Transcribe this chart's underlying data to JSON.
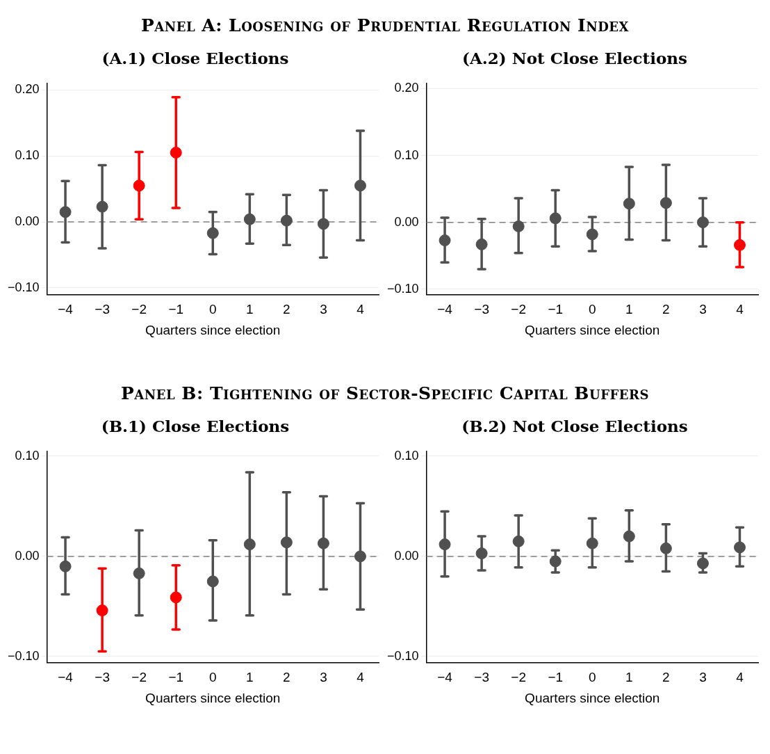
{
  "chart_data": [
    {
      "type": "scatter",
      "title": "(A.1) Close Elections",
      "xlabel": "Quarters since election",
      "annotations": [
        "Panel A: Loosening of Prudential Regulation Index"
      ],
      "marker": "circle",
      "grid": "y",
      "legend": false,
      "x": [
        -4,
        -3,
        -2,
        -1,
        0,
        1,
        2,
        3,
        4
      ],
      "xlim": [
        -4.5,
        4.5
      ],
      "xticks": [
        {
          "value": -4,
          "label": "−4"
        },
        {
          "value": -3,
          "label": "−3"
        },
        {
          "value": -2,
          "label": "−2"
        },
        {
          "value": -1,
          "label": "−1"
        },
        0,
        1,
        2,
        3,
        4
      ],
      "ylim": [
        -0.11,
        0.21
      ],
      "yticks": [
        {
          "value": -0.1,
          "label": "−0.10"
        },
        {
          "value": 0,
          "label": "0.00"
        },
        {
          "value": 0.1,
          "label": "0.10"
        },
        {
          "value": 0.2,
          "label": "0.20"
        }
      ],
      "ref_lines": [
        {
          "axis": "y",
          "value": 0,
          "color": "#808080",
          "line_style": "dashed"
        }
      ],
      "series": [
        {
          "values": [
            0.015,
            0.023,
            0.055,
            0.105,
            -0.017,
            0.004,
            0.002,
            -0.003,
            0.055
          ],
          "colors": [
            "#505050",
            "#505050",
            "#ff0000",
            "#ff0000",
            "#505050",
            "#505050",
            "#505050",
            "#505050",
            "#505050"
          ],
          "errors": [
            [
              -0.031,
              0.062
            ],
            [
              -0.04,
              0.086
            ],
            [
              0.004,
              0.106
            ],
            [
              0.021,
              0.189
            ],
            [
              -0.049,
              0.015
            ],
            [
              -0.033,
              0.042
            ],
            [
              -0.035,
              0.041
            ],
            [
              -0.054,
              0.048
            ],
            [
              -0.028,
              0.138
            ]
          ]
        }
      ]
    },
    {
      "type": "scatter",
      "title": "(A.2) Not Close Elections",
      "xlabel": "Quarters since election",
      "marker": "circle",
      "grid": "y",
      "legend": false,
      "x": [
        -4,
        -3,
        -2,
        -1,
        0,
        1,
        2,
        3,
        4
      ],
      "xlim": [
        -4.5,
        4.5
      ],
      "xticks": [
        {
          "value": -4,
          "label": "−4"
        },
        {
          "value": -3,
          "label": "−3"
        },
        {
          "value": -2,
          "label": "−2"
        },
        {
          "value": -1,
          "label": "−1"
        },
        0,
        1,
        2,
        3,
        4
      ],
      "ylim": [
        -0.108,
        0.208
      ],
      "yticks": [
        {
          "value": -0.1,
          "label": "−0.10"
        },
        {
          "value": 0,
          "label": "0.00"
        },
        {
          "value": 0.1,
          "label": "0.10"
        },
        {
          "value": 0.2,
          "label": "0.20"
        }
      ],
      "ref_lines": [
        {
          "axis": "y",
          "value": 0,
          "color": "#808080",
          "line_style": "dashed"
        }
      ],
      "series": [
        {
          "values": [
            -0.027,
            -0.033,
            -0.006,
            0.006,
            -0.018,
            0.028,
            0.029,
            0.0,
            -0.034
          ],
          "colors": [
            "#505050",
            "#505050",
            "#505050",
            "#505050",
            "#505050",
            "#505050",
            "#505050",
            "#505050",
            "#ff0000"
          ],
          "errors": [
            [
              -0.06,
              0.007
            ],
            [
              -0.07,
              0.005
            ],
            [
              -0.046,
              0.036
            ],
            [
              -0.036,
              0.048
            ],
            [
              -0.043,
              0.008
            ],
            [
              -0.026,
              0.083
            ],
            [
              -0.027,
              0.086
            ],
            [
              -0.036,
              0.036
            ],
            [
              -0.067,
              0.0
            ]
          ]
        }
      ]
    },
    {
      "type": "scatter",
      "title": "(B.1) Close Elections",
      "xlabel": "Quarters since election",
      "annotations": [
        "Panel B: Tightening of Sector-Specific Capital Buffers"
      ],
      "marker": "circle",
      "grid": "y",
      "legend": false,
      "x": [
        -4,
        -3,
        -2,
        -1,
        0,
        1,
        2,
        3,
        4
      ],
      "xlim": [
        -4.5,
        4.5
      ],
      "xticks": [
        {
          "value": -4,
          "label": "−4"
        },
        {
          "value": -3,
          "label": "−3"
        },
        {
          "value": -2,
          "label": "−2"
        },
        {
          "value": -1,
          "label": "−1"
        },
        0,
        1,
        2,
        3,
        4
      ],
      "ylim": [
        -0.106,
        0.105
      ],
      "yticks": [
        {
          "value": -0.1,
          "label": "−0.10"
        },
        {
          "value": 0,
          "label": "0.00"
        },
        {
          "value": 0.1,
          "label": "0.10"
        }
      ],
      "ref_lines": [
        {
          "axis": "y",
          "value": 0,
          "color": "#808080",
          "line_style": "dashed"
        }
      ],
      "series": [
        {
          "values": [
            -0.01,
            -0.054,
            -0.017,
            -0.041,
            -0.025,
            0.012,
            0.014,
            0.013,
            0.0
          ],
          "colors": [
            "#505050",
            "#ff0000",
            "#505050",
            "#ff0000",
            "#505050",
            "#505050",
            "#505050",
            "#505050",
            "#505050"
          ],
          "errors": [
            [
              -0.038,
              0.019
            ],
            [
              -0.095,
              -0.012
            ],
            [
              -0.059,
              0.026
            ],
            [
              -0.073,
              -0.009
            ],
            [
              -0.064,
              0.016
            ],
            [
              -0.059,
              0.084
            ],
            [
              -0.038,
              0.064
            ],
            [
              -0.033,
              0.06
            ],
            [
              -0.053,
              0.053
            ]
          ]
        }
      ]
    },
    {
      "type": "scatter",
      "title": "(B.2) Not Close Elections",
      "xlabel": "Quarters since election",
      "marker": "circle",
      "grid": "y",
      "legend": false,
      "x": [
        -4,
        -3,
        -2,
        -1,
        0,
        1,
        2,
        3,
        4
      ],
      "xlim": [
        -4.5,
        4.5
      ],
      "xticks": [
        {
          "value": -4,
          "label": "−4"
        },
        {
          "value": -3,
          "label": "−3"
        },
        {
          "value": -2,
          "label": "−2"
        },
        {
          "value": -1,
          "label": "−1"
        },
        0,
        1,
        2,
        3,
        4
      ],
      "ylim": [
        -0.106,
        0.105
      ],
      "yticks": [
        {
          "value": -0.1,
          "label": "−0.10"
        },
        {
          "value": 0,
          "label": "0.00"
        },
        {
          "value": 0.1,
          "label": "0.10"
        }
      ],
      "ref_lines": [
        {
          "axis": "y",
          "value": 0,
          "color": "#808080",
          "line_style": "dashed"
        }
      ],
      "series": [
        {
          "values": [
            0.012,
            0.003,
            0.015,
            -0.005,
            0.013,
            0.02,
            0.008,
            -0.007,
            0.009
          ],
          "color": "#505050",
          "errors": [
            [
              -0.02,
              0.045
            ],
            [
              -0.014,
              0.02
            ],
            [
              -0.011,
              0.041
            ],
            [
              -0.016,
              0.006
            ],
            [
              -0.011,
              0.038
            ],
            [
              -0.005,
              0.046
            ],
            [
              -0.015,
              0.032
            ],
            [
              -0.016,
              0.003
            ],
            [
              -0.01,
              0.029
            ]
          ]
        }
      ]
    }
  ]
}
